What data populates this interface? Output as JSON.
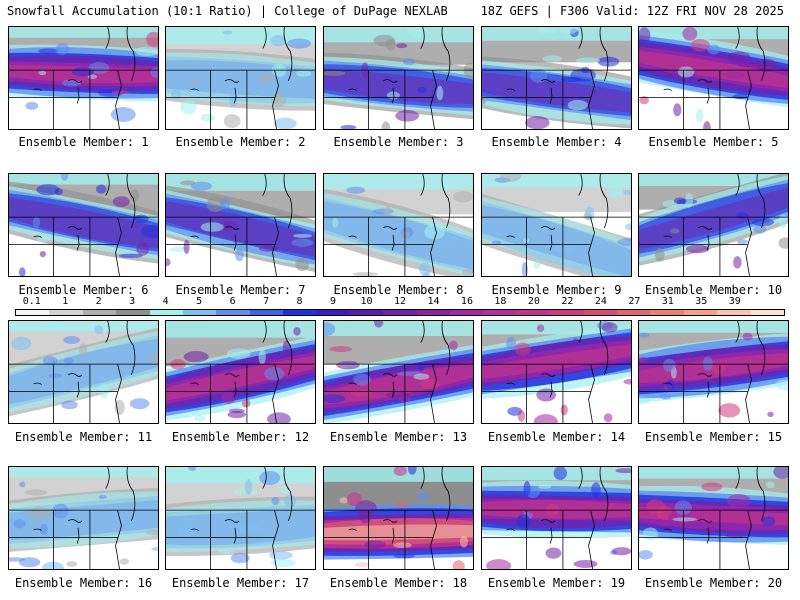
{
  "header": {
    "title_left": "Snowfall Accumulation (10:1 Ratio) | College of DuPage NEXLAB",
    "title_right": "18Z GEFS | F306 Valid: 12Z FRI NOV 28 2025"
  },
  "legend": {
    "labels": [
      "0.1",
      "1",
      "2",
      "3",
      "4",
      "5",
      "6",
      "7",
      "8",
      "9",
      "10",
      "12",
      "14",
      "16",
      "18",
      "20",
      "22",
      "24",
      "27",
      "31",
      "35",
      "39"
    ],
    "colors": [
      "#f4f4f4",
      "#d2d2d2",
      "#aeaeae",
      "#8e8e8e",
      "#a4f0f0",
      "#7ec0f0",
      "#5e8ef0",
      "#3a64f0",
      "#2030e0",
      "#3c1cc8",
      "#5a1ab4",
      "#7420a8",
      "#8c22a4",
      "#a626a6",
      "#b82c9e",
      "#c8308e",
      "#d43a80",
      "#dc4a74",
      "#e4646e",
      "#ec8270",
      "#f2a08a",
      "#f8c4ac",
      "#fde2d2"
    ]
  },
  "panels": [
    {
      "caption": "Ensemble Member: 1",
      "snow": "heavy"
    },
    {
      "caption": "Ensemble Member: 2",
      "snow": "light"
    },
    {
      "caption": "Ensemble Member: 3",
      "snow": "moderate"
    },
    {
      "caption": "Ensemble Member: 4",
      "snow": "moderate"
    },
    {
      "caption": "Ensemble Member: 5",
      "snow": "heavy"
    },
    {
      "caption": "Ensemble Member: 6",
      "snow": "moderate"
    },
    {
      "caption": "Ensemble Member: 7",
      "snow": "moderate"
    },
    {
      "caption": "Ensemble Member: 8",
      "snow": "light"
    },
    {
      "caption": "Ensemble Member: 9",
      "snow": "light"
    },
    {
      "caption": "Ensemble Member: 10",
      "snow": "moderate"
    },
    {
      "caption": "Ensemble Member: 11",
      "snow": "light"
    },
    {
      "caption": "Ensemble Member: 12",
      "snow": "heavy"
    },
    {
      "caption": "Ensemble Member: 13",
      "snow": "heavy"
    },
    {
      "caption": "Ensemble Member: 14",
      "snow": "heavy"
    },
    {
      "caption": "Ensemble Member: 15",
      "snow": "heavy"
    },
    {
      "caption": "Ensemble Member: 16",
      "snow": "light"
    },
    {
      "caption": "Ensemble Member: 17",
      "snow": "light"
    },
    {
      "caption": "Ensemble Member: 18",
      "snow": "extreme"
    },
    {
      "caption": "Ensemble Member: 19",
      "snow": "heavy"
    },
    {
      "caption": "Ensemble Member: 20",
      "snow": "heavy"
    }
  ]
}
